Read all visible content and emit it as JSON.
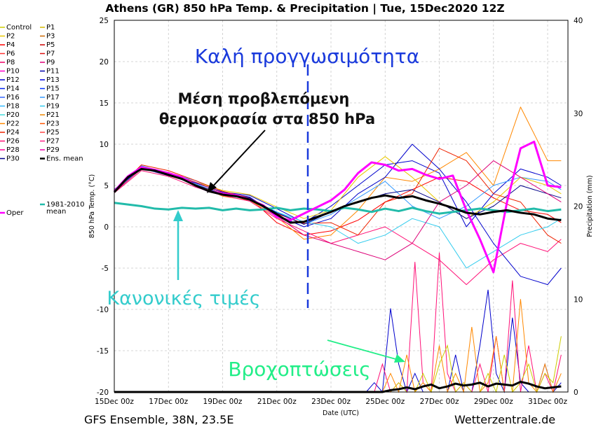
{
  "chart_data": {
    "type": "line",
    "title": "Athens  (GR)  850 hPa Temp. & Precipitation | Tue, 15Dec2020 12Z",
    "xlabel": "Date (UTC)",
    "ylabel": "850 hPa Temp. (°C)",
    "y2label": "Precipitation (mm)",
    "ylim": [
      -20,
      25
    ],
    "y2lim": [
      0,
      40
    ],
    "xlim_days": [
      0,
      16.75
    ],
    "x_ticks": [
      "15Dec 00z",
      "17Dec 00z",
      "19Dec 00z",
      "21Dec 00z",
      "23Dec 00z",
      "25Dec 00z",
      "27Dec 00z",
      "29Dec 00z",
      "31Dec 00z"
    ],
    "y_ticks": [
      25,
      20,
      15,
      10,
      5,
      0,
      -5,
      -10,
      -15,
      -20
    ],
    "y2_ticks": [
      40,
      30,
      20,
      10,
      0
    ],
    "grid": true,
    "legend_placement": "left, outside plot",
    "legend": [
      {
        "name": "Control",
        "color": "#cccc00"
      },
      {
        "name": "P1",
        "color": "#d4b800"
      },
      {
        "name": "P2",
        "color": "#e8c800"
      },
      {
        "name": "P3",
        "color": "#cc6600"
      },
      {
        "name": "P4",
        "color": "#ff0000"
      },
      {
        "name": "P5",
        "color": "#cc0000"
      },
      {
        "name": "P6",
        "color": "#ff3333"
      },
      {
        "name": "P7",
        "color": "#dd1111"
      },
      {
        "name": "P8",
        "color": "#ee0066"
      },
      {
        "name": "P9",
        "color": "#dd0077"
      },
      {
        "name": "P10",
        "color": "#ff00cc"
      },
      {
        "name": "P11",
        "color": "#0000aa"
      },
      {
        "name": "P12",
        "color": "#0000cc"
      },
      {
        "name": "P13",
        "color": "#0000dd"
      },
      {
        "name": "P14",
        "color": "#0022ee"
      },
      {
        "name": "P15",
        "color": "#0033ff"
      },
      {
        "name": "P16",
        "color": "#3366ff"
      },
      {
        "name": "P17",
        "color": "#3399ff"
      },
      {
        "name": "P18",
        "color": "#33bbff"
      },
      {
        "name": "P19",
        "color": "#33ccee"
      },
      {
        "name": "P20",
        "color": "#44dddd"
      },
      {
        "name": "P21",
        "color": "#ee8800"
      },
      {
        "name": "P22",
        "color": "#ff8800"
      },
      {
        "name": "P23",
        "color": "#ff5500"
      },
      {
        "name": "P24",
        "color": "#ee2200"
      },
      {
        "name": "P25",
        "color": "#ff4444"
      },
      {
        "name": "P26",
        "color": "#ff1177"
      },
      {
        "name": "P27",
        "color": "#ff2288"
      },
      {
        "name": "P28",
        "color": "#ff0099"
      },
      {
        "name": "P29",
        "color": "#ee00aa"
      },
      {
        "name": "P30",
        "color": "#000088"
      },
      {
        "name": "Ens. mean",
        "color": "#000000"
      },
      {
        "name": "1981-2010\nmean",
        "color": "#22bbaa"
      },
      {
        "name": "Oper",
        "color": "#ff00ff"
      }
    ],
    "series": [
      {
        "name": "Ens. mean",
        "color": "#000000",
        "x": [
          0,
          0.5,
          1,
          1.5,
          2,
          2.5,
          3,
          3.5,
          4,
          4.5,
          5,
          5.5,
          6,
          6.5,
          7,
          7.5,
          8,
          8.5,
          9,
          9.5,
          10,
          10.5,
          11,
          11.5,
          12,
          12.5,
          13,
          13.5,
          14,
          14.5,
          15,
          15.5,
          16,
          16.5
        ],
        "y": [
          4.2,
          6,
          7,
          6.8,
          6.3,
          5.8,
          5,
          4.3,
          3.9,
          3.7,
          3.3,
          2.5,
          1.5,
          0.5,
          0.6,
          1.2,
          1.8,
          2.5,
          3,
          3.5,
          3.8,
          3.5,
          3.7,
          3.2,
          2.8,
          2.3,
          1.7,
          1.5,
          1.8,
          2,
          1.7,
          1.5,
          1,
          0.8
        ]
      },
      {
        "name": "1981-2010\nmean",
        "color": "#22bbaa",
        "x": [
          0,
          0.5,
          1,
          1.5,
          2,
          2.5,
          3,
          3.5,
          4,
          4.5,
          5,
          5.5,
          6,
          6.5,
          7,
          7.5,
          8,
          8.5,
          9,
          9.5,
          10,
          10.5,
          11,
          11.5,
          12,
          12.5,
          13,
          13.5,
          14,
          14.5,
          15,
          15.5,
          16,
          16.5
        ],
        "y": [
          2.9,
          2.7,
          2.5,
          2.2,
          2.1,
          2.3,
          2.2,
          2.3,
          2.0,
          2.2,
          2.0,
          2.1,
          2.3,
          2.0,
          2.2,
          2.1,
          1.9,
          2.3,
          2.1,
          1.8,
          2.2,
          1.9,
          2.3,
          1.9,
          1.6,
          1.8,
          2.0,
          2.2,
          2.0,
          1.8,
          2.0,
          2.2,
          1.9,
          2.1
        ]
      },
      {
        "name": "Oper",
        "color": "#ff00ff",
        "x": [
          0,
          0.5,
          1,
          1.5,
          2,
          2.5,
          3,
          3.5,
          4,
          4.5,
          5,
          5.5,
          6,
          6.5,
          7,
          7.5,
          8,
          8.5,
          9,
          9.5,
          10,
          10.5,
          11,
          11.5,
          12,
          12.5,
          13,
          13.5,
          14,
          14.5,
          15,
          15.5,
          16,
          16.5
        ],
        "y": [
          4.3,
          6.1,
          7.2,
          6.9,
          6.5,
          6,
          5,
          4.3,
          4,
          3.8,
          3.3,
          2.6,
          1.2,
          0.8,
          1.6,
          2.4,
          3.2,
          4.5,
          6.5,
          7.8,
          7.5,
          6.8,
          7,
          6.3,
          5.8,
          6.2,
          2,
          -1.5,
          -5.5,
          3,
          9.5,
          10.3,
          5,
          4.8
        ]
      },
      {
        "name": "P11",
        "color": "#0000cc",
        "x": [
          0,
          1,
          2,
          3,
          4,
          5,
          6,
          7,
          8,
          9,
          10,
          11,
          12,
          13,
          14,
          15,
          16,
          16.5
        ],
        "y": [
          4.5,
          7.3,
          6.4,
          5.3,
          4.2,
          3.8,
          2.2,
          0.5,
          2.5,
          5,
          7.5,
          8,
          6.5,
          0,
          4,
          7,
          6,
          5
        ]
      },
      {
        "name": "P4",
        "color": "#ff0000",
        "x": [
          0,
          1,
          2,
          3,
          4,
          5,
          6,
          7,
          8,
          9,
          10,
          11,
          12,
          13,
          14,
          15,
          16,
          16.5
        ],
        "y": [
          4.3,
          7,
          6.6,
          5.1,
          4,
          3.5,
          0.5,
          -1,
          -0.5,
          0.8,
          3,
          4.5,
          6,
          5.5,
          3.5,
          2,
          1.5,
          0.5
        ]
      },
      {
        "name": "P22",
        "color": "#ff8800",
        "x": [
          0,
          1,
          2,
          3,
          4,
          5,
          6,
          7,
          8,
          9,
          10,
          11,
          12,
          13,
          14,
          15,
          16,
          16.5
        ],
        "y": [
          4.2,
          7.1,
          6.2,
          5.2,
          3.7,
          3.2,
          1.2,
          -1.5,
          -1,
          2,
          6,
          5.5,
          7,
          9,
          5,
          14.5,
          8,
          8
        ]
      },
      {
        "name": "P17",
        "color": "#3399ff",
        "x": [
          0,
          1,
          2,
          3,
          4,
          5,
          6,
          7,
          8,
          9,
          10,
          11,
          12,
          13,
          14,
          15,
          16,
          16.5
        ],
        "y": [
          4.4,
          7.4,
          6.5,
          5.6,
          4.1,
          3.3,
          1.8,
          0.3,
          1.5,
          3.5,
          5.5,
          2.5,
          1,
          2.5,
          5,
          6,
          5.5,
          4.5
        ]
      },
      {
        "name": "P26",
        "color": "#ff1177",
        "x": [
          0,
          1,
          2,
          3,
          4,
          5,
          6,
          7,
          8,
          9,
          10,
          11,
          12,
          13,
          14,
          15,
          16,
          16.5
        ],
        "y": [
          4.1,
          6.8,
          6.1,
          4.8,
          3.8,
          3.1,
          1,
          -0.5,
          -2,
          -1,
          0,
          -2,
          -4,
          -7,
          -4,
          -2,
          -3,
          -1.5
        ]
      },
      {
        "name": "P2",
        "color": "#e8c800",
        "x": [
          0,
          1,
          2,
          3,
          4,
          5,
          6,
          7,
          8,
          9,
          10,
          11,
          12,
          13,
          14,
          15,
          16,
          16.5
        ],
        "y": [
          4.3,
          7.2,
          6.3,
          5.4,
          4.4,
          3.9,
          2.4,
          1,
          2,
          6,
          8.5,
          6,
          3,
          1,
          3,
          6,
          5,
          4
        ]
      },
      {
        "name": "P12",
        "color": "#0000cc",
        "x": [
          0,
          1,
          2,
          3,
          4,
          5,
          6,
          7,
          8,
          9,
          10,
          11,
          12,
          13,
          14,
          15,
          16,
          16.5
        ],
        "y": [
          4.4,
          7.1,
          6.2,
          5.3,
          4.2,
          3.6,
          1.4,
          0,
          1,
          4,
          6,
          10,
          7,
          3,
          -2,
          -6,
          -7,
          -5
        ]
      },
      {
        "name": "P24",
        "color": "#ee2200",
        "x": [
          0,
          1,
          2,
          3,
          4,
          5,
          6,
          7,
          8,
          9,
          10,
          11,
          12,
          13,
          14,
          15,
          16,
          16.5
        ],
        "y": [
          4.2,
          7.5,
          6.8,
          5.6,
          4.3,
          3.5,
          1.6,
          0.4,
          0.5,
          -1,
          3,
          4,
          9.5,
          8,
          4,
          3,
          -1,
          -2
        ]
      },
      {
        "name": "P19",
        "color": "#33ccee",
        "x": [
          0,
          1,
          2,
          3,
          4,
          5,
          6,
          7,
          8,
          9,
          10,
          11,
          12,
          13,
          14,
          15,
          16,
          16.5
        ],
        "y": [
          4.3,
          7,
          6.4,
          5.2,
          3.9,
          3.3,
          1.8,
          0.6,
          0,
          -2,
          -1,
          1,
          0,
          -5,
          -3,
          -1,
          0,
          1
        ]
      },
      {
        "name": "P30",
        "color": "#000088",
        "x": [
          0,
          1,
          2,
          3,
          4,
          5,
          6,
          7,
          8,
          9,
          10,
          11,
          12,
          13,
          14,
          15,
          16,
          16.5
        ],
        "y": [
          4.5,
          7.2,
          6.3,
          5.1,
          4,
          3.5,
          1.7,
          0.3,
          1.8,
          3,
          4,
          4.5,
          3,
          1,
          2.5,
          5,
          4,
          3.5
        ]
      },
      {
        "name": "P9",
        "color": "#dd0077",
        "x": [
          0,
          1,
          2,
          3,
          4,
          5,
          6,
          7,
          8,
          9,
          10,
          11,
          12,
          13,
          14,
          15,
          16,
          16.5
        ],
        "y": [
          4.2,
          7,
          6.6,
          5.4,
          4.1,
          3.4,
          1.3,
          -1,
          -2,
          -3,
          -4,
          -2,
          3,
          5,
          8,
          6,
          4,
          3
        ]
      }
    ],
    "precip_series": [
      {
        "name": "P12",
        "color": "#0000cc",
        "x": [
          0,
          9.3,
          9.6,
          9.9,
          10.2,
          10.5,
          10.8,
          11.1,
          11.4,
          11.7,
          12,
          12.3,
          12.6,
          12.9,
          13.2,
          13.5,
          13.8,
          14.1,
          14.4,
          14.7,
          15,
          15.3,
          15.6,
          15.9,
          16.2,
          16.5
        ],
        "mm": [
          0,
          0,
          1,
          0,
          9,
          3,
          0,
          2,
          0,
          0,
          0,
          0,
          4,
          0,
          0,
          5,
          11,
          2,
          0,
          8,
          1,
          0,
          0,
          3,
          0,
          1
        ]
      },
      {
        "name": "P26",
        "color": "#ff1177",
        "x": [
          0,
          9.3,
          9.6,
          9.9,
          10.2,
          10.5,
          10.8,
          11.1,
          11.4,
          11.7,
          12,
          12.3,
          12.6,
          12.9,
          13.2,
          13.5,
          13.8,
          14.1,
          14.4,
          14.7,
          15,
          15.3,
          15.6,
          15.9,
          16.2,
          16.5
        ],
        "mm": [
          0,
          0,
          0,
          3,
          0,
          1,
          0,
          14,
          1,
          0,
          15,
          2,
          0,
          1,
          0,
          3,
          0,
          6,
          0,
          12,
          0,
          5,
          0,
          2,
          0,
          4
        ]
      },
      {
        "name": "P22",
        "color": "#ff8800",
        "x": [
          0,
          9.3,
          9.6,
          9.9,
          10.2,
          10.5,
          10.8,
          11.1,
          11.4,
          11.7,
          12,
          12.3,
          12.6,
          12.9,
          13.2,
          13.5,
          13.8,
          14.1,
          14.4,
          14.7,
          15,
          15.3,
          15.6,
          15.9,
          16.2,
          16.5
        ],
        "mm": [
          0,
          0,
          0,
          0,
          2,
          0,
          4,
          0,
          1,
          0,
          5,
          0,
          2,
          0,
          7,
          0,
          1,
          6,
          0,
          0,
          10,
          1,
          0,
          3,
          0,
          2
        ]
      },
      {
        "name": "Control",
        "color": "#cccc00",
        "x": [
          0,
          9.3,
          9.6,
          9.9,
          10.2,
          10.5,
          10.8,
          11.1,
          11.4,
          11.7,
          12,
          12.3,
          12.6,
          12.9,
          13.2,
          13.5,
          13.8,
          14.1,
          14.4,
          14.7,
          15,
          15.3,
          15.6,
          15.9,
          16.2,
          16.5
        ],
        "mm": [
          0,
          0,
          0,
          0,
          0,
          1,
          0,
          0,
          2,
          0,
          3,
          5,
          0,
          1,
          0,
          0,
          2,
          0,
          4,
          0,
          1,
          3,
          0,
          2,
          1,
          6
        ]
      },
      {
        "name": "Ens. mean",
        "color": "#000000",
        "x": [
          0,
          9.3,
          9.6,
          9.9,
          10.2,
          10.5,
          10.8,
          11.1,
          11.4,
          11.7,
          12,
          12.3,
          12.6,
          12.9,
          13.2,
          13.5,
          13.8,
          14.1,
          14.4,
          14.7,
          15,
          15.3,
          15.6,
          15.9,
          16.2,
          16.5
        ],
        "mm": [
          0,
          0,
          0,
          0,
          0.2,
          0.3,
          0.5,
          0.3,
          0.6,
          0.8,
          0.4,
          0.6,
          0.9,
          0.7,
          0.8,
          1.0,
          0.6,
          0.9,
          0.8,
          0.7,
          1.1,
          0.9,
          0.6,
          0.4,
          0.5,
          0.6
        ]
      }
    ]
  },
  "annotations": {
    "good_forecast": "Καλή προγγωσιμότητα",
    "mean_temp_line1": "Μέση προβλεπόμενη",
    "mean_temp_line2": "θερμοκρασία στα 850 hPa",
    "normal_values": "Κανονικές τιμές",
    "precipitation": "Βροχοπτώσεις"
  },
  "footer": {
    "left": "GFS Ensemble, 38N, 23.5E",
    "right": "Wetterzentrale.de"
  },
  "colors": {
    "blue_text": "#1a3adc",
    "teal_text": "#33cccc",
    "green_text": "#22ee88",
    "divider": "#1a3adc"
  }
}
